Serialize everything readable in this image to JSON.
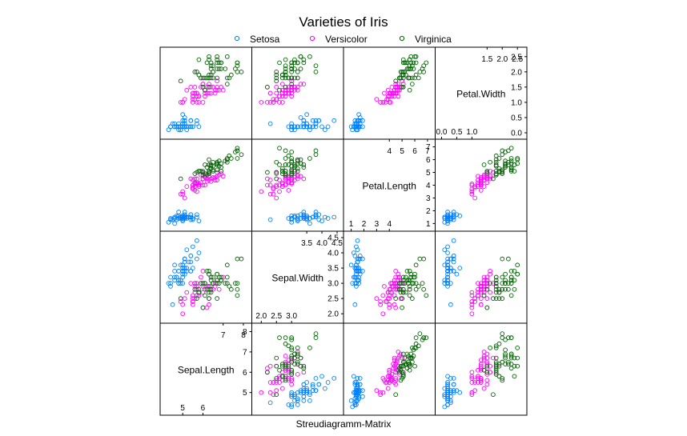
{
  "chart_data": {
    "type": "scatter",
    "title": "Varieties of Iris",
    "xlabel": "Streudiagramm-Matrix",
    "legend": {
      "placement": "top",
      "entries": [
        {
          "name": "Setosa",
          "color": "#0080ff"
        },
        {
          "name": "Versicolor",
          "color": "#ff00ff"
        },
        {
          "name": "Virginica",
          "color": "#006400"
        }
      ]
    },
    "variables": [
      {
        "name": "Sepal.Length",
        "range": [
          4.2,
          8.1
        ],
        "ticks_low": [
          "5",
          "6"
        ],
        "ticks_high": [
          "7",
          "8"
        ],
        "ticks_axis": [
          "5",
          "6",
          "7",
          "8"
        ]
      },
      {
        "name": "Sepal.Width",
        "range": [
          1.9,
          4.5
        ],
        "ticks_low": [
          "2.0",
          "2.5",
          "3.0"
        ],
        "ticks_high": [
          "3.5",
          "4.0",
          "4.5"
        ],
        "ticks_axis": [
          "2.0",
          "2.5",
          "3.0",
          "3.5",
          "4.0",
          "4.5"
        ]
      },
      {
        "name": "Petal.Length",
        "range": [
          0.9,
          7.1
        ],
        "ticks_low": [
          "1",
          "2",
          "3",
          "4"
        ],
        "ticks_high": [
          "4",
          "5",
          "6",
          "7"
        ],
        "ticks_axis": [
          "1",
          "2",
          "3",
          "4",
          "5",
          "6",
          "7"
        ]
      },
      {
        "name": "Petal.Width",
        "range": [
          0.0,
          2.6
        ],
        "ticks_low": [
          "0.0",
          "0.5",
          "1.0"
        ],
        "ticks_high": [
          "1.5",
          "2.0",
          "2.5"
        ],
        "ticks_axis": [
          "0.0",
          "0.5",
          "1.0",
          "1.5",
          "2.0",
          "2.5"
        ]
      }
    ],
    "series": [
      {
        "name": "Setosa",
        "color": "#0080ff",
        "points": [
          [
            5.1,
            3.5,
            1.4,
            0.2
          ],
          [
            4.9,
            3.0,
            1.4,
            0.2
          ],
          [
            4.7,
            3.2,
            1.3,
            0.2
          ],
          [
            4.6,
            3.1,
            1.5,
            0.2
          ],
          [
            5.0,
            3.6,
            1.4,
            0.2
          ],
          [
            5.4,
            3.9,
            1.7,
            0.4
          ],
          [
            4.6,
            3.4,
            1.4,
            0.3
          ],
          [
            5.0,
            3.4,
            1.5,
            0.2
          ],
          [
            4.4,
            2.9,
            1.4,
            0.2
          ],
          [
            4.9,
            3.1,
            1.5,
            0.1
          ],
          [
            5.4,
            3.7,
            1.5,
            0.2
          ],
          [
            4.8,
            3.4,
            1.6,
            0.2
          ],
          [
            4.8,
            3.0,
            1.4,
            0.1
          ],
          [
            4.3,
            3.0,
            1.1,
            0.1
          ],
          [
            5.8,
            4.0,
            1.2,
            0.2
          ],
          [
            5.7,
            4.4,
            1.5,
            0.4
          ],
          [
            5.4,
            3.9,
            1.3,
            0.4
          ],
          [
            5.1,
            3.5,
            1.4,
            0.3
          ],
          [
            5.7,
            3.8,
            1.7,
            0.3
          ],
          [
            5.1,
            3.8,
            1.5,
            0.3
          ],
          [
            5.4,
            3.4,
            1.7,
            0.2
          ],
          [
            5.1,
            3.7,
            1.5,
            0.4
          ],
          [
            4.6,
            3.6,
            1.0,
            0.2
          ],
          [
            5.1,
            3.3,
            1.7,
            0.5
          ],
          [
            4.8,
            3.4,
            1.9,
            0.2
          ],
          [
            5.0,
            3.0,
            1.6,
            0.2
          ],
          [
            5.0,
            3.4,
            1.6,
            0.4
          ],
          [
            5.2,
            3.5,
            1.5,
            0.2
          ],
          [
            5.2,
            3.4,
            1.4,
            0.2
          ],
          [
            4.7,
            3.2,
            1.6,
            0.2
          ],
          [
            4.8,
            3.1,
            1.6,
            0.2
          ],
          [
            5.4,
            3.4,
            1.5,
            0.4
          ],
          [
            5.2,
            4.1,
            1.5,
            0.1
          ],
          [
            5.5,
            4.2,
            1.4,
            0.2
          ],
          [
            4.9,
            3.1,
            1.5,
            0.2
          ],
          [
            5.0,
            3.2,
            1.2,
            0.2
          ],
          [
            5.5,
            3.5,
            1.3,
            0.2
          ],
          [
            4.9,
            3.6,
            1.4,
            0.1
          ],
          [
            4.4,
            3.0,
            1.3,
            0.2
          ],
          [
            5.1,
            3.4,
            1.5,
            0.2
          ],
          [
            5.0,
            3.5,
            1.3,
            0.3
          ],
          [
            4.5,
            2.3,
            1.3,
            0.3
          ],
          [
            4.4,
            3.2,
            1.3,
            0.2
          ],
          [
            5.0,
            3.5,
            1.6,
            0.6
          ],
          [
            5.1,
            3.8,
            1.9,
            0.4
          ],
          [
            4.8,
            3.0,
            1.4,
            0.3
          ],
          [
            5.1,
            3.8,
            1.6,
            0.2
          ],
          [
            4.6,
            3.2,
            1.4,
            0.2
          ],
          [
            5.3,
            3.7,
            1.5,
            0.2
          ],
          [
            5.0,
            3.3,
            1.4,
            0.2
          ]
        ]
      },
      {
        "name": "Versicolor",
        "color": "#ff00ff",
        "points": [
          [
            7.0,
            3.2,
            4.7,
            1.4
          ],
          [
            6.4,
            3.2,
            4.5,
            1.5
          ],
          [
            6.9,
            3.1,
            4.9,
            1.5
          ],
          [
            5.5,
            2.3,
            4.0,
            1.3
          ],
          [
            6.5,
            2.8,
            4.6,
            1.5
          ],
          [
            5.7,
            2.8,
            4.5,
            1.3
          ],
          [
            6.3,
            3.3,
            4.7,
            1.6
          ],
          [
            4.9,
            2.4,
            3.3,
            1.0
          ],
          [
            6.6,
            2.9,
            4.6,
            1.3
          ],
          [
            5.2,
            2.7,
            3.9,
            1.4
          ],
          [
            5.0,
            2.0,
            3.5,
            1.0
          ],
          [
            5.9,
            3.0,
            4.2,
            1.5
          ],
          [
            6.0,
            2.2,
            4.0,
            1.0
          ],
          [
            6.1,
            2.9,
            4.7,
            1.4
          ],
          [
            5.6,
            2.9,
            3.6,
            1.3
          ],
          [
            6.7,
            3.1,
            4.4,
            1.4
          ],
          [
            5.6,
            3.0,
            4.5,
            1.5
          ],
          [
            5.8,
            2.7,
            4.1,
            1.0
          ],
          [
            6.2,
            2.2,
            4.5,
            1.5
          ],
          [
            5.6,
            2.5,
            3.9,
            1.1
          ],
          [
            5.9,
            3.2,
            4.8,
            1.8
          ],
          [
            6.1,
            2.8,
            4.0,
            1.3
          ],
          [
            6.3,
            2.5,
            4.9,
            1.5
          ],
          [
            6.1,
            2.8,
            4.7,
            1.2
          ],
          [
            6.4,
            2.9,
            4.3,
            1.3
          ],
          [
            6.6,
            3.0,
            4.4,
            1.4
          ],
          [
            6.8,
            2.8,
            4.8,
            1.4
          ],
          [
            6.7,
            3.0,
            5.0,
            1.7
          ],
          [
            6.0,
            2.9,
            4.5,
            1.5
          ],
          [
            5.7,
            2.6,
            3.5,
            1.0
          ],
          [
            5.5,
            2.4,
            3.8,
            1.1
          ],
          [
            5.5,
            2.4,
            3.7,
            1.0
          ],
          [
            5.8,
            2.7,
            3.9,
            1.2
          ],
          [
            6.0,
            2.7,
            5.1,
            1.6
          ],
          [
            5.4,
            3.0,
            4.5,
            1.5
          ],
          [
            6.0,
            3.4,
            4.5,
            1.6
          ],
          [
            6.7,
            3.1,
            4.7,
            1.5
          ],
          [
            6.3,
            2.3,
            4.4,
            1.3
          ],
          [
            5.6,
            3.0,
            4.1,
            1.3
          ],
          [
            5.5,
            2.5,
            4.0,
            1.3
          ],
          [
            5.5,
            2.6,
            4.4,
            1.2
          ],
          [
            6.1,
            3.0,
            4.6,
            1.4
          ],
          [
            5.8,
            2.6,
            4.0,
            1.2
          ],
          [
            5.0,
            2.3,
            3.3,
            1.0
          ],
          [
            5.6,
            2.7,
            4.2,
            1.3
          ],
          [
            5.7,
            3.0,
            4.2,
            1.2
          ],
          [
            5.7,
            2.9,
            4.2,
            1.3
          ],
          [
            6.2,
            2.9,
            4.3,
            1.3
          ],
          [
            5.1,
            2.5,
            3.0,
            1.1
          ],
          [
            5.7,
            2.8,
            4.1,
            1.3
          ]
        ]
      },
      {
        "name": "Virginica",
        "color": "#006400",
        "points": [
          [
            6.3,
            3.3,
            6.0,
            2.5
          ],
          [
            5.8,
            2.7,
            5.1,
            1.9
          ],
          [
            7.1,
            3.0,
            5.9,
            2.1
          ],
          [
            6.3,
            2.9,
            5.6,
            1.8
          ],
          [
            6.5,
            3.0,
            5.8,
            2.2
          ],
          [
            7.6,
            3.0,
            6.6,
            2.1
          ],
          [
            4.9,
            2.5,
            4.5,
            1.7
          ],
          [
            7.3,
            2.9,
            6.3,
            1.8
          ],
          [
            6.7,
            2.5,
            5.8,
            1.8
          ],
          [
            7.2,
            3.6,
            6.1,
            2.5
          ],
          [
            6.5,
            3.2,
            5.1,
            2.0
          ],
          [
            6.4,
            2.7,
            5.3,
            1.9
          ],
          [
            6.8,
            3.0,
            5.5,
            2.1
          ],
          [
            5.7,
            2.5,
            5.0,
            2.0
          ],
          [
            5.8,
            2.8,
            5.1,
            2.4
          ],
          [
            6.4,
            3.2,
            5.3,
            2.3
          ],
          [
            6.5,
            3.0,
            5.5,
            1.8
          ],
          [
            7.7,
            3.8,
            6.7,
            2.2
          ],
          [
            7.7,
            2.6,
            6.9,
            2.3
          ],
          [
            6.0,
            2.2,
            5.0,
            1.5
          ],
          [
            6.9,
            3.2,
            5.7,
            2.3
          ],
          [
            5.6,
            2.8,
            4.9,
            2.0
          ],
          [
            7.7,
            2.8,
            6.7,
            2.0
          ],
          [
            6.3,
            2.7,
            4.9,
            1.8
          ],
          [
            6.7,
            3.3,
            5.7,
            2.1
          ],
          [
            7.2,
            3.2,
            6.0,
            1.8
          ],
          [
            6.2,
            2.8,
            4.8,
            1.8
          ],
          [
            6.1,
            3.0,
            4.9,
            1.8
          ],
          [
            6.4,
            2.8,
            5.6,
            2.1
          ],
          [
            7.2,
            3.0,
            5.8,
            1.6
          ],
          [
            7.4,
            2.8,
            6.1,
            1.9
          ],
          [
            7.9,
            3.8,
            6.4,
            2.0
          ],
          [
            6.4,
            2.8,
            5.6,
            2.2
          ],
          [
            6.3,
            2.8,
            5.1,
            1.5
          ],
          [
            6.1,
            2.6,
            5.6,
            1.4
          ],
          [
            7.7,
            3.0,
            6.1,
            2.3
          ],
          [
            6.3,
            3.4,
            5.6,
            2.4
          ],
          [
            6.4,
            3.1,
            5.5,
            1.8
          ],
          [
            6.0,
            3.0,
            4.8,
            1.8
          ],
          [
            6.9,
            3.1,
            5.4,
            2.1
          ],
          [
            6.7,
            3.1,
            5.6,
            2.4
          ],
          [
            6.9,
            3.1,
            5.1,
            2.3
          ],
          [
            5.8,
            2.7,
            5.1,
            1.9
          ],
          [
            6.8,
            3.2,
            5.9,
            2.3
          ],
          [
            6.7,
            3.3,
            5.7,
            2.5
          ],
          [
            6.7,
            3.0,
            5.2,
            2.3
          ],
          [
            6.3,
            2.5,
            5.0,
            1.9
          ],
          [
            6.5,
            3.0,
            5.2,
            2.0
          ],
          [
            6.2,
            3.4,
            5.4,
            2.3
          ],
          [
            5.9,
            3.0,
            5.1,
            1.8
          ]
        ]
      }
    ]
  }
}
